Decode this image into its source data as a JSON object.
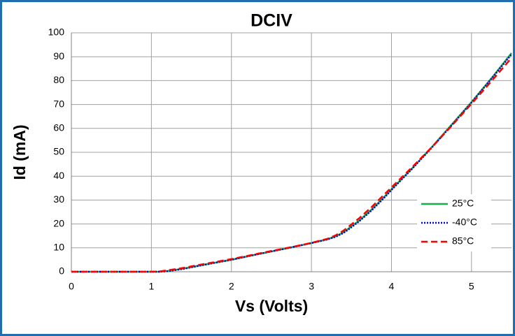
{
  "chart_data": {
    "type": "line",
    "title": "DCIV",
    "xlabel": "Vs (Volts)",
    "ylabel": "Id (mA)",
    "x": [
      0,
      0.5,
      1,
      1.1,
      1.2,
      1.4,
      1.6,
      1.8,
      2,
      2.25,
      2.5,
      2.75,
      3,
      3.2,
      3.3,
      3.4,
      3.5,
      3.6,
      3.75,
      3.9,
      4,
      4.25,
      4.5,
      4.75,
      5,
      5.25,
      5.5
    ],
    "series": [
      {
        "name": "25°C",
        "color": "#1aab4e",
        "style": "solid",
        "values": [
          0,
          0,
          0,
          0,
          0.3,
          1.3,
          2.6,
          3.8,
          5,
          6.8,
          8.5,
          10.2,
          12,
          13.6,
          14.8,
          16.5,
          19,
          21.5,
          26,
          31,
          34.5,
          43,
          52,
          61.5,
          71,
          81,
          91.5
        ]
      },
      {
        "name": "-40°C",
        "color": "#0000cc",
        "style": "dotted",
        "values": [
          0,
          0,
          0,
          0,
          0.2,
          1.2,
          2.5,
          3.8,
          5,
          6.8,
          8.5,
          10.2,
          12,
          13.5,
          14.6,
          16.2,
          18.6,
          21.2,
          25.6,
          30.6,
          34.2,
          42.8,
          51.8,
          61.2,
          70.8,
          80.8,
          91
        ]
      },
      {
        "name": "85°C",
        "color": "#ff0000",
        "style": "dashed",
        "values": [
          0,
          0,
          0,
          0.1,
          0.6,
          1.6,
          2.9,
          4.1,
          5.3,
          7,
          8.7,
          10.3,
          12.1,
          13.8,
          15.2,
          17.2,
          19.8,
          22.5,
          27,
          32,
          35.3,
          43.5,
          52,
          61,
          70.3,
          79.8,
          89.5
        ]
      }
    ],
    "xlim": [
      0,
      5.5
    ],
    "xticks": [
      0,
      1,
      2,
      3,
      4,
      5
    ],
    "ylim": [
      0,
      100
    ],
    "yticks": [
      0,
      10,
      20,
      30,
      40,
      50,
      60,
      70,
      80,
      90,
      100
    ],
    "grid": true,
    "legend": "right"
  }
}
